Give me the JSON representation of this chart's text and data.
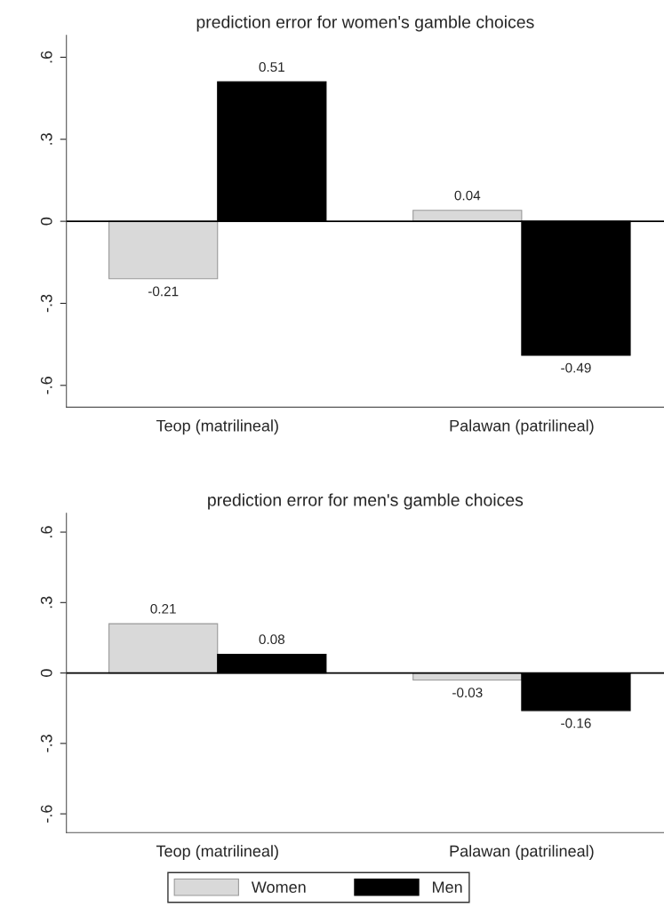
{
  "chart_data": [
    {
      "type": "bar",
      "title": "prediction error for women's gamble choices",
      "categories": [
        "Teop (matrilineal)",
        "Palawan (patrilineal)"
      ],
      "series": [
        {
          "color": "#d9d9d9",
          "values": [
            -0.21,
            0.04
          ]
        },
        {
          "color": "#000000",
          "values": [
            0.51,
            -0.49
          ]
        }
      ],
      "ylim": [
        -0.68,
        0.68
      ],
      "yticks": [
        {
          "value": -0.6,
          "label": "-.6"
        },
        {
          "value": -0.3,
          "label": "-.3"
        },
        0,
        {
          "value": 0.3,
          "label": ".3"
        },
        {
          "value": 0.6,
          "label": ".6"
        }
      ],
      "ref_lines": [
        {
          "axis": "y",
          "value": 0,
          "color": "#000000"
        }
      ],
      "data_labels": true,
      "grid": false
    },
    {
      "type": "bar",
      "title": "prediction error for men's gamble choices",
      "categories": [
        "Teop (matrilineal)",
        "Palawan (patrilineal)"
      ],
      "series": [
        {
          "name": "Women",
          "color": "#d9d9d9",
          "values": [
            0.21,
            -0.03
          ]
        },
        {
          "name": "Men",
          "color": "#000000",
          "values": [
            0.08,
            -0.16
          ]
        }
      ],
      "ylim": [
        -0.68,
        0.68
      ],
      "yticks": [
        {
          "value": -0.6,
          "label": "-.6"
        },
        {
          "value": -0.3,
          "label": "-.3"
        },
        0,
        {
          "value": 0.3,
          "label": ".3"
        },
        {
          "value": 0.6,
          "label": ".6"
        }
      ],
      "ref_lines": [
        {
          "axis": "y",
          "value": 0,
          "color": "#000000"
        }
      ],
      "data_labels": true,
      "grid": false,
      "legend": "bottom"
    }
  ]
}
